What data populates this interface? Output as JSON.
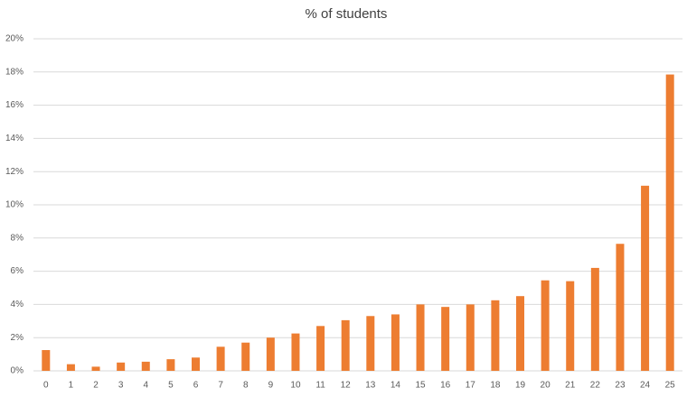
{
  "chart_data": {
    "type": "bar",
    "title": "% of students",
    "categories": [
      "0",
      "1",
      "2",
      "3",
      "4",
      "5",
      "6",
      "7",
      "8",
      "9",
      "10",
      "11",
      "12",
      "13",
      "14",
      "15",
      "16",
      "17",
      "18",
      "19",
      "20",
      "21",
      "22",
      "23",
      "24",
      "25"
    ],
    "values": [
      1.25,
      0.4,
      0.25,
      0.5,
      0.55,
      0.7,
      0.8,
      1.45,
      1.7,
      2.0,
      2.25,
      2.7,
      3.05,
      3.3,
      3.4,
      4.0,
      3.85,
      4.0,
      4.25,
      4.5,
      5.45,
      5.4,
      6.2,
      7.65,
      11.15,
      17.85
    ],
    "color": "#ed7d31",
    "ylim": [
      0,
      20
    ],
    "yticks": [
      {
        "value": 0,
        "label": "0%"
      },
      {
        "value": 2,
        "label": "2%"
      },
      {
        "value": 4,
        "label": "4%"
      },
      {
        "value": 6,
        "label": "6%"
      },
      {
        "value": 8,
        "label": "8%"
      },
      {
        "value": 10,
        "label": "10%"
      },
      {
        "value": 12,
        "label": "12%"
      },
      {
        "value": 14,
        "label": "14%"
      },
      {
        "value": 16,
        "label": "16%"
      },
      {
        "value": 18,
        "label": "18%"
      },
      {
        "value": 20,
        "label": "20%"
      }
    ],
    "grid": true
  }
}
